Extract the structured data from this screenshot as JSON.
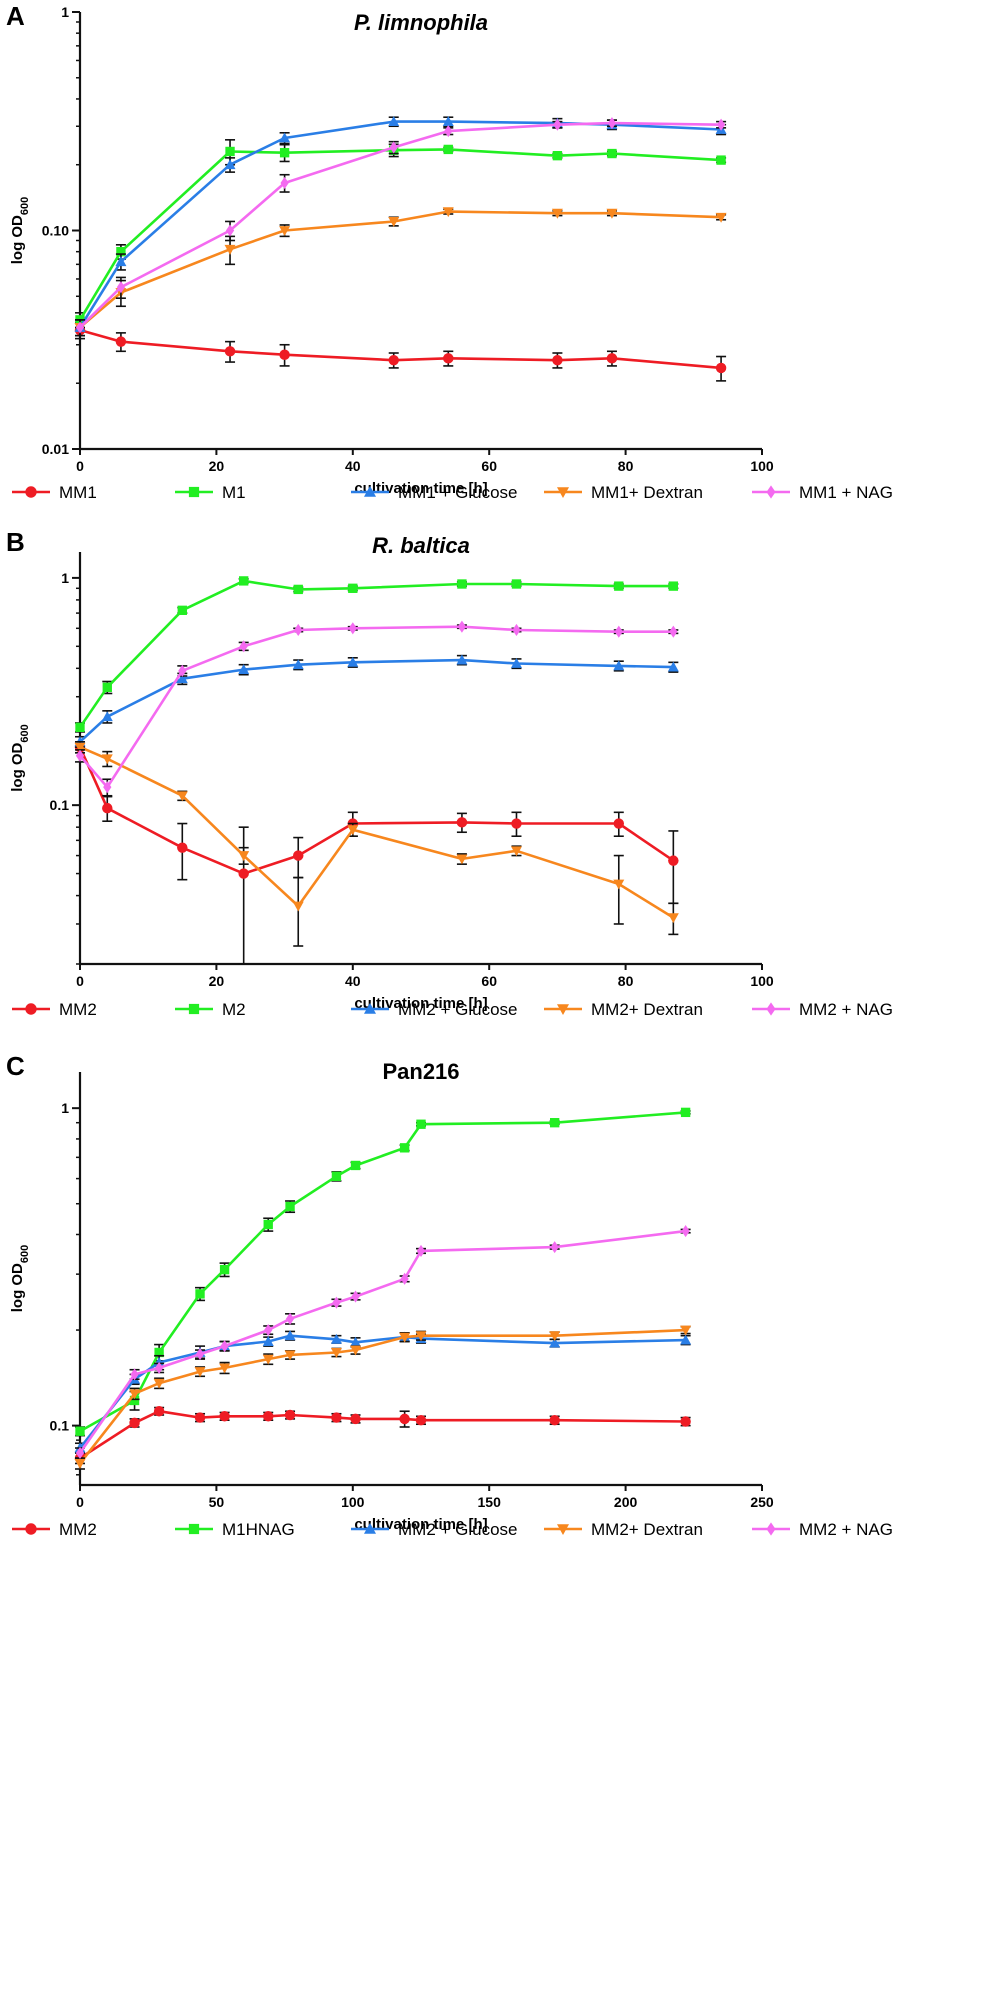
{
  "chart_data": [
    {
      "type": "line",
      "panel": "A",
      "title": "P. limnophila",
      "title_italic": true,
      "xlabel": "cultivation time [h]",
      "ylabel": "log OD",
      "ylabel_sub": "600",
      "yscale": "log",
      "xlim": [
        0,
        100
      ],
      "ylim": [
        0.01,
        1
      ],
      "xticks": [
        0,
        20,
        40,
        60,
        80,
        100
      ],
      "yticks": [
        {
          "v": 0.01,
          "label": "0.01"
        },
        {
          "v": 0.1,
          "label": "0.10"
        },
        {
          "v": 1,
          "label": "1"
        }
      ],
      "series": [
        {
          "name": "MM1",
          "color": "#ee1c24",
          "marker": "circle",
          "x": [
            0,
            6,
            22,
            30,
            46,
            54,
            70,
            78,
            94
          ],
          "y": [
            0.035,
            0.031,
            0.028,
            0.027,
            0.0255,
            0.026,
            0.0255,
            0.026,
            0.0235
          ],
          "err": [
            0.003,
            0.003,
            0.003,
            0.003,
            0.002,
            0.002,
            0.002,
            0.002,
            0.003
          ]
        },
        {
          "name": "M1",
          "color": "#22ee22",
          "marker": "square",
          "x": [
            0,
            6,
            22,
            30,
            46,
            54,
            70,
            78,
            94
          ],
          "y": [
            0.039,
            0.08,
            0.23,
            0.227,
            0.233,
            0.235,
            0.22,
            0.225,
            0.21
          ],
          "err": [
            0.003,
            0.006,
            0.03,
            0.02,
            0.015,
            0.005,
            0.005,
            0.005,
            0.005
          ]
        },
        {
          "name": "MM1 + Glucose",
          "color": "#2a7ee6",
          "marker": "triangle-up",
          "x": [
            0,
            6,
            22,
            30,
            46,
            54,
            70,
            78,
            94
          ],
          "y": [
            0.036,
            0.072,
            0.2,
            0.265,
            0.315,
            0.315,
            0.31,
            0.305,
            0.29
          ],
          "err": [
            0.003,
            0.006,
            0.015,
            0.015,
            0.015,
            0.015,
            0.015,
            0.015,
            0.015
          ]
        },
        {
          "name": "MM1+ Dextran",
          "color": "#f7871e",
          "marker": "triangle-down",
          "x": [
            0,
            6,
            22,
            30,
            46,
            54,
            70,
            78,
            94
          ],
          "y": [
            0.036,
            0.052,
            0.082,
            0.1,
            0.11,
            0.122,
            0.12,
            0.12,
            0.115
          ],
          "err": [
            0.003,
            0.007,
            0.012,
            0.006,
            0.005,
            0.003,
            0.003,
            0.003,
            0.003
          ]
        },
        {
          "name": "MM1 + NAG",
          "color": "#f46af0",
          "marker": "diamond",
          "x": [
            0,
            6,
            22,
            30,
            46,
            54,
            70,
            78,
            94
          ],
          "y": [
            0.036,
            0.055,
            0.1,
            0.165,
            0.24,
            0.285,
            0.305,
            0.31,
            0.305
          ],
          "err": [
            0.003,
            0.006,
            0.01,
            0.015,
            0.015,
            0.01,
            0.01,
            0.01,
            0.01
          ]
        }
      ]
    },
    {
      "type": "line",
      "panel": "B",
      "title": "R. baltica",
      "title_italic": true,
      "xlabel": "cultivation time [h]",
      "ylabel": "log OD",
      "ylabel_sub": "600",
      "yscale": "log",
      "xlim": [
        0,
        100
      ],
      "ylim": [
        0.02,
        1.3
      ],
      "xticks": [
        0,
        20,
        40,
        60,
        80,
        100
      ],
      "yticks": [
        {
          "v": 0.1,
          "label": "0.1"
        },
        {
          "v": 1,
          "label": "1"
        }
      ],
      "series": [
        {
          "name": "MM2",
          "color": "#ee1c24",
          "marker": "circle",
          "x": [
            0,
            4,
            15,
            24,
            32,
            40,
            56,
            64,
            79,
            87
          ],
          "y": [
            0.18,
            0.097,
            0.065,
            0.05,
            0.06,
            0.083,
            0.084,
            0.083,
            0.083,
            0.057
          ],
          "err": [
            0.01,
            0.012,
            0.018,
            0.03,
            0.012,
            0.01,
            0.008,
            0.01,
            0.01,
            0.02
          ]
        },
        {
          "name": "M2",
          "color": "#22ee22",
          "marker": "square",
          "x": [
            0,
            4,
            15,
            24,
            32,
            40,
            56,
            64,
            79,
            87
          ],
          "y": [
            0.22,
            0.33,
            0.72,
            0.97,
            0.89,
            0.9,
            0.94,
            0.94,
            0.92,
            0.92
          ],
          "err": [
            0.01,
            0.02,
            0.02,
            0.02,
            0.02,
            0.02,
            0.02,
            0.02,
            0.02,
            0.02
          ]
        },
        {
          "name": "MM2 + Glucose",
          "color": "#2a7ee6",
          "marker": "triangle-up",
          "x": [
            0,
            4,
            15,
            24,
            32,
            40,
            56,
            64,
            79,
            87
          ],
          "y": [
            0.19,
            0.245,
            0.36,
            0.395,
            0.415,
            0.425,
            0.435,
            0.42,
            0.41,
            0.405
          ],
          "err": [
            0.01,
            0.015,
            0.02,
            0.02,
            0.02,
            0.02,
            0.02,
            0.02,
            0.02,
            0.02
          ]
        },
        {
          "name": "MM2+ Dextran",
          "color": "#f7871e",
          "marker": "triangle-down",
          "x": [
            0,
            4,
            15,
            24,
            32,
            40,
            56,
            64,
            79,
            87
          ],
          "y": [
            0.18,
            0.16,
            0.11,
            0.06,
            0.036,
            0.078,
            0.058,
            0.063,
            0.045,
            0.032
          ],
          "err": [
            0.01,
            0.012,
            0.005,
            0.005,
            0.012,
            0.005,
            0.003,
            0.003,
            0.015,
            0.005
          ]
        },
        {
          "name": "MM2 + NAG",
          "color": "#f46af0",
          "marker": "diamond",
          "x": [
            0,
            4,
            15,
            24,
            32,
            40,
            56,
            64,
            79,
            87
          ],
          "y": [
            0.165,
            0.12,
            0.39,
            0.5,
            0.59,
            0.6,
            0.61,
            0.59,
            0.58,
            0.58
          ],
          "err": [
            0.01,
            0.01,
            0.02,
            0.02,
            0.01,
            0.01,
            0.01,
            0.01,
            0.01,
            0.01
          ]
        }
      ]
    },
    {
      "type": "line",
      "panel": "C",
      "title": "Pan216",
      "title_italic": false,
      "xlabel": "cultivation time [h]",
      "ylabel": "log OD",
      "ylabel_sub": "600",
      "yscale": "log",
      "xlim": [
        0,
        250
      ],
      "ylim": [
        0.065,
        1.3
      ],
      "xticks": [
        0,
        50,
        100,
        150,
        200,
        250
      ],
      "yticks": [
        {
          "v": 0.1,
          "label": "0.1"
        },
        {
          "v": 1,
          "label": "1"
        }
      ],
      "series": [
        {
          "name": "MM2",
          "color": "#ee1c24",
          "marker": "circle",
          "x": [
            0,
            20,
            29,
            44,
            53,
            69,
            77,
            94,
            101,
            119,
            125,
            174,
            222
          ],
          "y": [
            0.079,
            0.102,
            0.111,
            0.106,
            0.107,
            0.107,
            0.108,
            0.106,
            0.105,
            0.105,
            0.104,
            0.104,
            0.103
          ],
          "err": [
            0.003,
            0.003,
            0.003,
            0.003,
            0.003,
            0.003,
            0.003,
            0.003,
            0.003,
            0.006,
            0.003,
            0.003,
            0.003
          ]
        },
        {
          "name": "M1HNAG",
          "color": "#22ee22",
          "marker": "square",
          "x": [
            0,
            20,
            29,
            44,
            53,
            69,
            77,
            94,
            101,
            119,
            125,
            174,
            222
          ],
          "y": [
            0.096,
            0.12,
            0.17,
            0.26,
            0.31,
            0.43,
            0.49,
            0.61,
            0.66,
            0.75,
            0.89,
            0.9,
            0.97
          ],
          "err": [
            0.003,
            0.008,
            0.01,
            0.012,
            0.015,
            0.02,
            0.02,
            0.02,
            0.015,
            0.015,
            0.01,
            0.01,
            0.01
          ]
        },
        {
          "name": "MM2 + Glucose",
          "color": "#2a7ee6",
          "marker": "triangle-up",
          "x": [
            0,
            20,
            29,
            44,
            53,
            69,
            77,
            94,
            101,
            119,
            125,
            174,
            222
          ],
          "y": [
            0.085,
            0.14,
            0.158,
            0.17,
            0.178,
            0.184,
            0.192,
            0.187,
            0.183,
            0.19,
            0.188,
            0.182,
            0.186
          ],
          "err": [
            0.003,
            0.005,
            0.008,
            0.008,
            0.006,
            0.006,
            0.006,
            0.005,
            0.006,
            0.006,
            0.006,
            0.005,
            0.006
          ]
        },
        {
          "name": "MM2+ Dextran",
          "color": "#f7871e",
          "marker": "triangle-down",
          "x": [
            0,
            20,
            29,
            44,
            53,
            69,
            77,
            94,
            101,
            119,
            125,
            174,
            222
          ],
          "y": [
            0.076,
            0.126,
            0.136,
            0.148,
            0.152,
            0.162,
            0.167,
            0.17,
            0.173,
            0.19,
            0.192,
            0.192,
            0.2
          ],
          "err": [
            0.003,
            0.005,
            0.005,
            0.005,
            0.006,
            0.006,
            0.005,
            0.005,
            0.005,
            0.006,
            0.006,
            0.005,
            0.005
          ]
        },
        {
          "name": "MM2 + NAG",
          "color": "#f46af0",
          "marker": "diamond",
          "x": [
            0,
            20,
            29,
            44,
            53,
            69,
            77,
            94,
            101,
            119,
            125,
            174,
            222
          ],
          "y": [
            0.082,
            0.145,
            0.152,
            0.168,
            0.178,
            0.2,
            0.217,
            0.244,
            0.255,
            0.29,
            0.355,
            0.365,
            0.41
          ],
          "err": [
            0.003,
            0.005,
            0.005,
            0.005,
            0.006,
            0.006,
            0.008,
            0.006,
            0.006,
            0.006,
            0.006,
            0.005,
            0.005
          ]
        }
      ]
    }
  ]
}
